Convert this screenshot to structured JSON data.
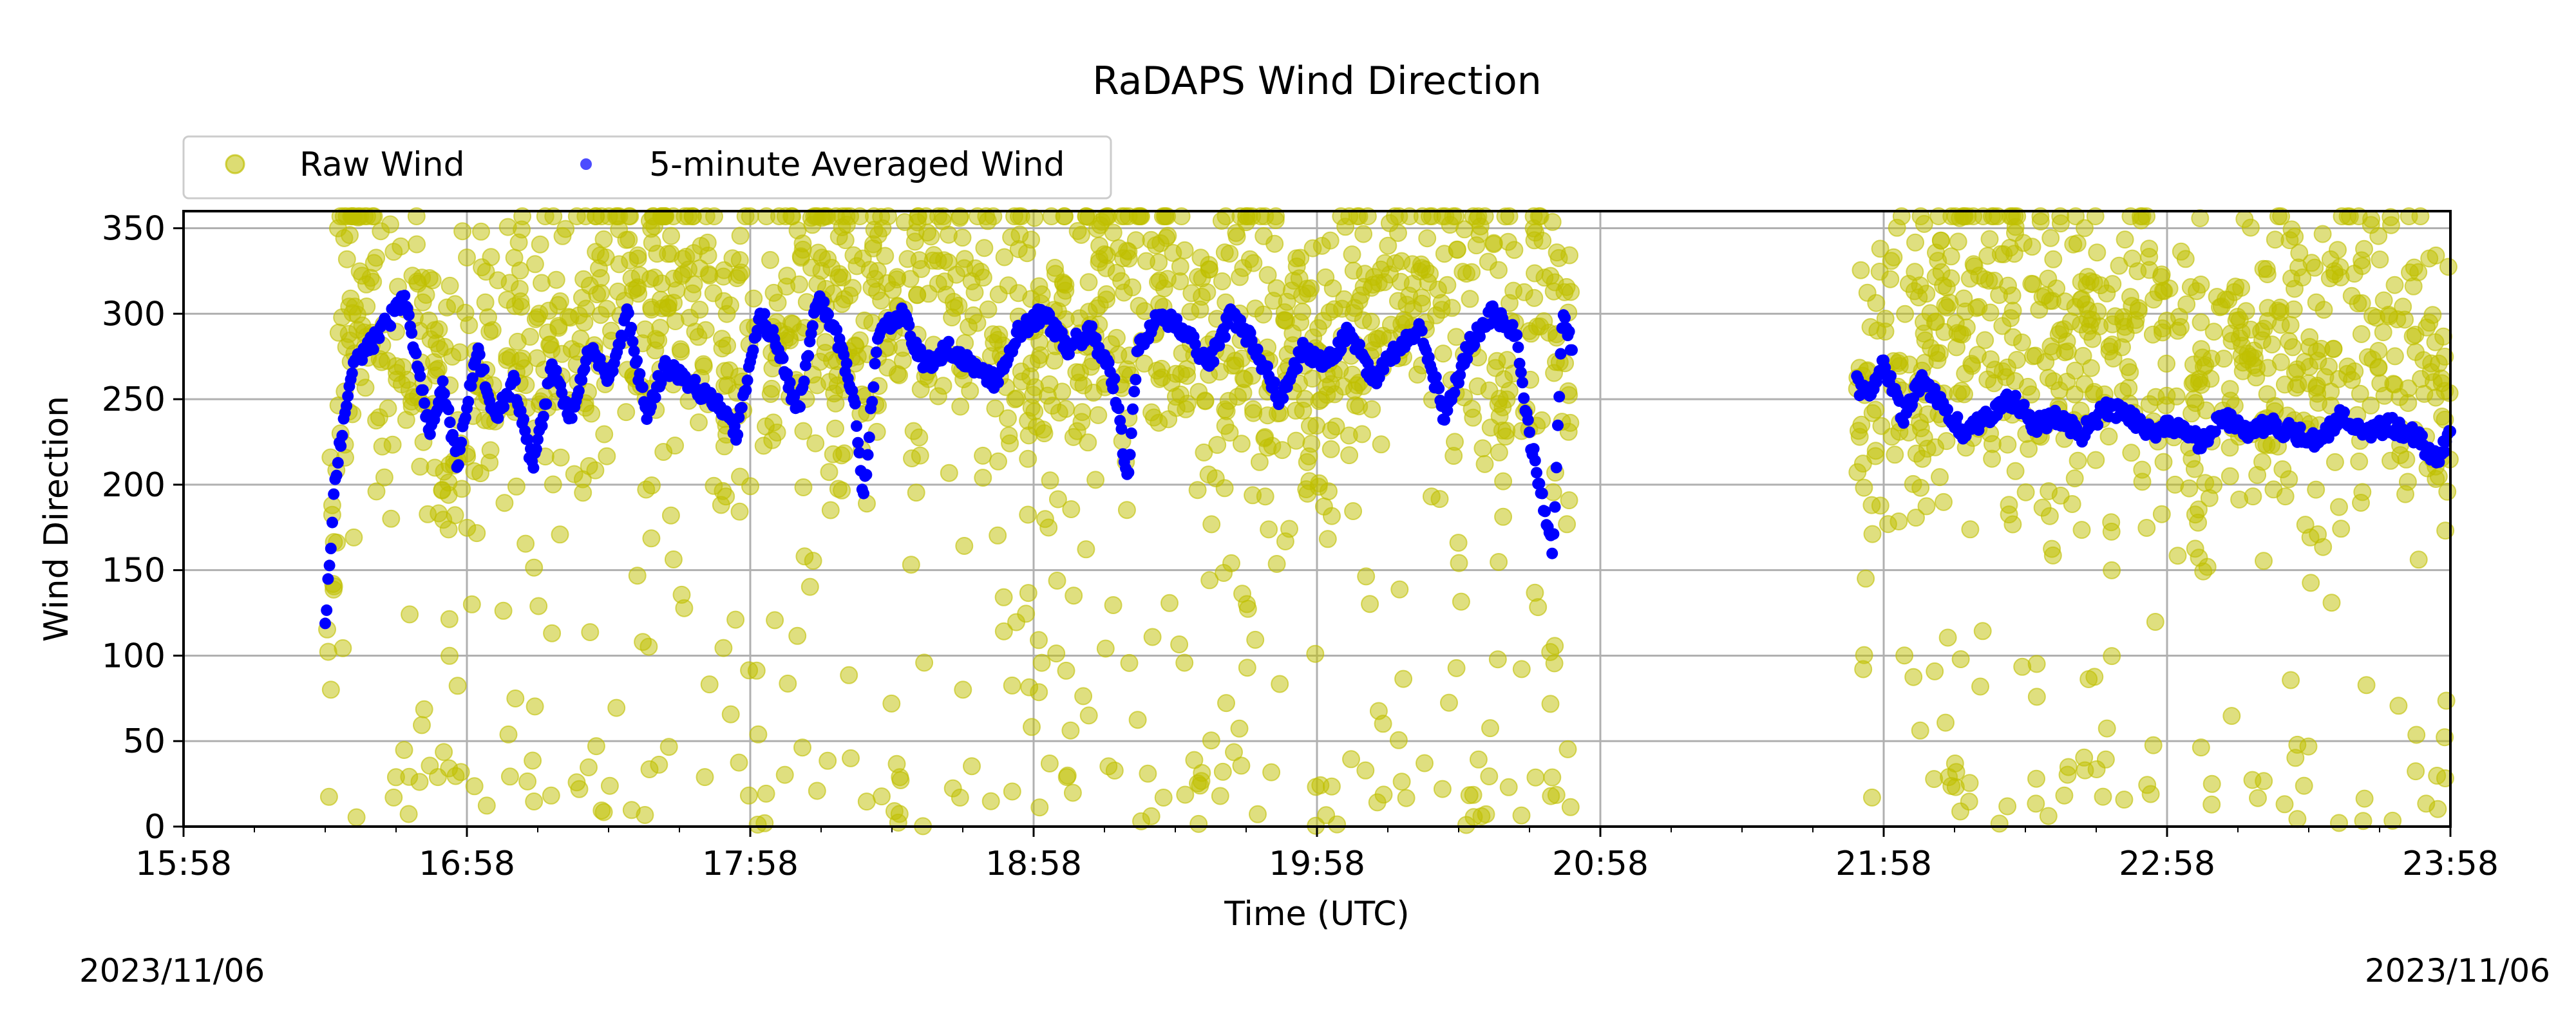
{
  "chart_data": {
    "type": "scatter",
    "title": "RaDAPS Wind Direction",
    "xlabel": "Time (UTC)",
    "ylabel": "Wind Direction",
    "xlim": [
      "15:58",
      "23:58"
    ],
    "ylim": [
      0,
      360
    ],
    "x_ticks": [
      "15:58",
      "16:58",
      "17:58",
      "18:58",
      "19:58",
      "20:58",
      "21:58",
      "22:58",
      "23:58"
    ],
    "y_ticks": [
      0,
      50,
      100,
      150,
      200,
      250,
      300,
      350
    ],
    "grid": true,
    "legend": {
      "placement": "top-left, above plot",
      "columns": 2
    },
    "data_gap": [
      "20:52",
      "21:52"
    ],
    "series": [
      {
        "name": "Raw Wind",
        "kind": "scatter",
        "color": "#bfbf00",
        "opacity": 0.5,
        "x": [
          "16:28",
          "16:30",
          "16:32",
          "16:35",
          "16:38",
          "16:42",
          "16:48",
          "16:55",
          "17:05",
          "17:15",
          "17:25",
          "17:35",
          "17:45",
          "17:55",
          "18:05",
          "18:10",
          "18:15",
          "18:25",
          "18:35",
          "18:45",
          "18:55",
          "19:00",
          "19:05",
          "19:15",
          "19:25",
          "19:35",
          "19:45",
          "19:55",
          "20:05",
          "20:15",
          "20:25",
          "20:35",
          "20:45",
          "20:50",
          "21:52",
          "21:55",
          "22:05",
          "22:15",
          "22:25",
          "22:35",
          "22:45",
          "22:55",
          "23:05",
          "23:15",
          "23:25",
          "23:35",
          "23:45",
          "23:55"
        ],
        "y": [
          120,
          210,
          300,
          340,
          280,
          260,
          300,
          250,
          290,
          270,
          310,
          300,
          320,
          250,
          280,
          300,
          290,
          300,
          310,
          280,
          300,
          260,
          290,
          310,
          300,
          280,
          300,
          270,
          290,
          300,
          310,
          280,
          300,
          270,
          260,
          280,
          270,
          300,
          290,
          280,
          270,
          290,
          260,
          280,
          270,
          290,
          280,
          260
        ]
      },
      {
        "name": "5-minute Averaged Wind",
        "kind": "line-dense",
        "color": "#0000ff",
        "x": [
          "16:28",
          "16:30",
          "16:32",
          "16:34",
          "16:37",
          "16:40",
          "16:45",
          "16:50",
          "16:53",
          "16:56",
          "17:00",
          "17:04",
          "17:08",
          "17:12",
          "17:16",
          "17:20",
          "17:24",
          "17:28",
          "17:32",
          "17:36",
          "17:40",
          "17:45",
          "17:50",
          "17:55",
          "18:00",
          "18:04",
          "18:08",
          "18:12",
          "18:16",
          "18:20",
          "18:22",
          "18:25",
          "18:30",
          "18:35",
          "18:40",
          "18:45",
          "18:50",
          "18:55",
          "19:00",
          "19:05",
          "19:10",
          "19:15",
          "19:18",
          "19:20",
          "19:25",
          "19:30",
          "19:35",
          "19:40",
          "19:45",
          "19:50",
          "19:55",
          "20:00",
          "20:05",
          "20:10",
          "20:15",
          "20:20",
          "20:25",
          "20:30",
          "20:35",
          "20:40",
          "20:43",
          "20:45",
          "20:48",
          "20:50",
          "20:52",
          "21:52",
          "21:55",
          "21:58",
          "22:02",
          "22:06",
          "22:10",
          "22:15",
          "22:20",
          "22:25",
          "22:30",
          "22:35",
          "22:40",
          "22:45",
          "22:50",
          "22:55",
          "23:00",
          "23:05",
          "23:10",
          "23:15",
          "23:20",
          "23:25",
          "23:30",
          "23:35",
          "23:40",
          "23:45",
          "23:50",
          "23:55",
          "23:58"
        ],
        "y": [
          115,
          200,
          240,
          270,
          280,
          290,
          310,
          230,
          260,
          210,
          280,
          240,
          260,
          210,
          270,
          240,
          280,
          260,
          300,
          240,
          270,
          260,
          250,
          230,
          300,
          280,
          240,
          310,
          290,
          250,
          190,
          290,
          300,
          270,
          280,
          270,
          260,
          290,
          300,
          280,
          290,
          260,
          200,
          280,
          300,
          290,
          270,
          300,
          280,
          250,
          280,
          270,
          290,
          260,
          280,
          290,
          240,
          280,
          300,
          290,
          230,
          200,
          160,
          300,
          280,
          260,
          250,
          270,
          240,
          260,
          250,
          230,
          240,
          250,
          235,
          240,
          230,
          245,
          240,
          230,
          235,
          225,
          240,
          230,
          235,
          230,
          225,
          240,
          230,
          235,
          230,
          215,
          230
        ]
      }
    ]
  },
  "dates": {
    "left": "2023/11/06",
    "right": "2023/11/06"
  }
}
